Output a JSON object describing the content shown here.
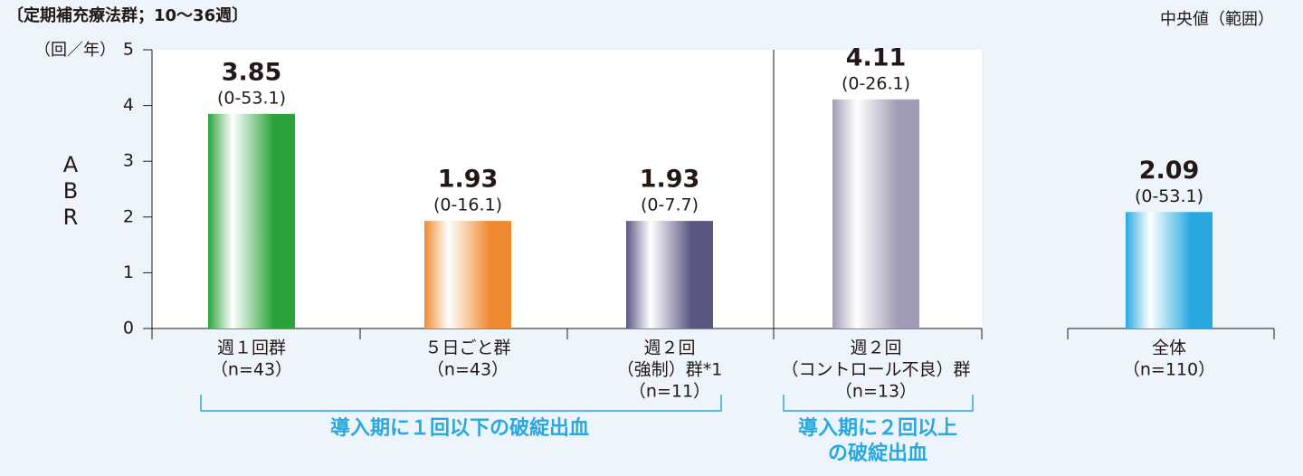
{
  "chart_data": {
    "type": "bar",
    "header": "〔定期補充療法群；10～36週〕",
    "legend_note": "中央値（範囲）",
    "y_unit": "（回／年）",
    "ylabel": "ABR",
    "ylim": [
      0,
      5
    ],
    "yticks": [
      0,
      1,
      2,
      3,
      4,
      5
    ],
    "categories": [
      [
        "週１回群",
        "（n=43）"
      ],
      [
        "５日ごと群",
        "（n=43）"
      ],
      [
        "週２回",
        "（強制）群*1",
        "（n=11）"
      ],
      [
        "週２回",
        "（コントロール不良）群",
        "（n=13）"
      ],
      [
        "全体",
        "（n=110）"
      ]
    ],
    "values": [
      3.85,
      1.93,
      1.93,
      4.11,
      2.09
    ],
    "range_labels": [
      "(0-53.1)",
      "(0-16.1)",
      "(0-7.7)",
      "(0-26.1)",
      "(0-53.1)"
    ],
    "colors": [
      "#2aa33a",
      "#f08a30",
      "#5a5682",
      "#a09cb5",
      "#29a8e0"
    ],
    "groups": [
      [
        "導入期に１回以下の破綻出血"
      ],
      [
        "導入期に２回以上",
        "の破綻出血"
      ]
    ]
  }
}
